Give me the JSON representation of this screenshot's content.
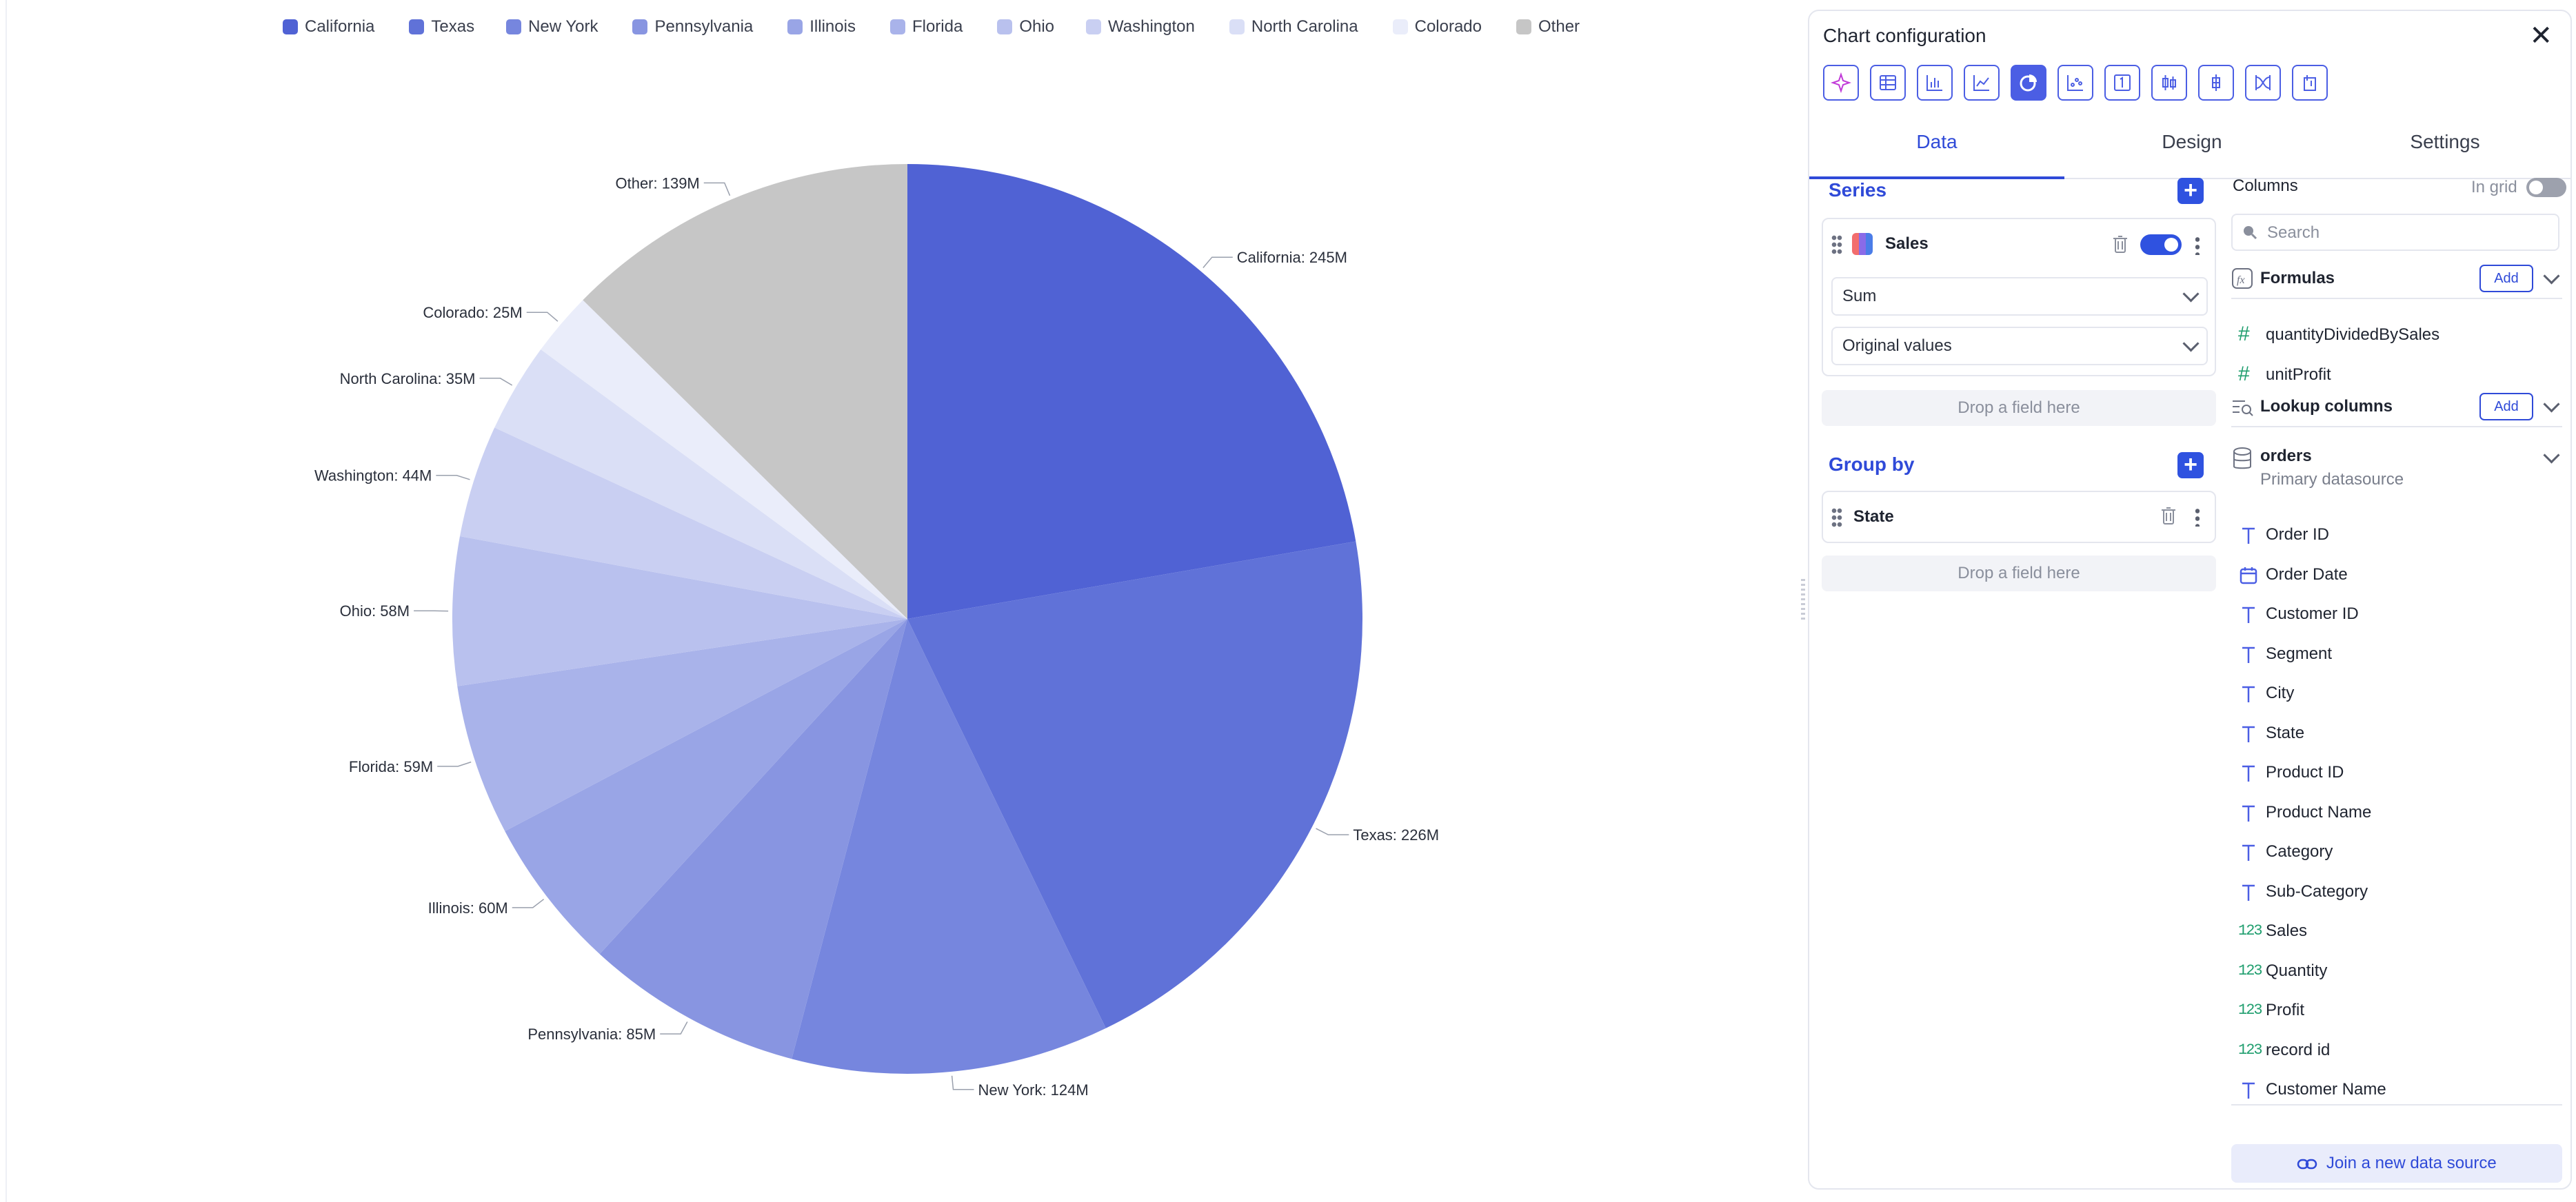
{
  "chart_data": {
    "type": "pie",
    "series_name": "Sales",
    "categories": [
      "California",
      "Texas",
      "New York",
      "Pennsylvania",
      "Illinois",
      "Florida",
      "Ohio",
      "Washington",
      "North Carolina",
      "Colorado",
      "Other"
    ],
    "values": [
      245,
      226,
      124,
      85,
      60,
      59,
      58,
      44,
      35,
      25,
      139
    ],
    "labels": [
      "California: 245M",
      "Texas: 226M",
      "New York: 124M",
      "Pennsylvania: 85M",
      "Illinois: 60M",
      "Florida: 59M",
      "Ohio: 58M",
      "Washington: 44M",
      "North Carolina: 35M",
      "Colorado: 25M",
      "Other: 139M"
    ],
    "colors": [
      "#5062d4",
      "#6072d8",
      "#7686de",
      "#8895e1",
      "#99a5e6",
      "#a9b3ea",
      "#b9c1ee",
      "#c9cff2",
      "#dadff6",
      "#eaedfa",
      "#c6c6c6"
    ],
    "legend_position": "top",
    "start_angle": "12 o'clock, clockwise"
  },
  "panel": {
    "title": "Chart configuration",
    "close_icon": "close-icon",
    "chart_types": [
      "smart-icon",
      "table-icon",
      "bar-chart-icon",
      "line-chart-icon",
      "pie-chart-icon",
      "scatter-icon",
      "number-kpi-icon",
      "box-plot-icon",
      "candlestick-icon",
      "sankey-icon",
      "funnel-icon"
    ],
    "active_chart_type": "pie-chart-icon",
    "accent": "#2f52e0",
    "tabs": [
      "Data",
      "Design",
      "Settings"
    ],
    "active_tab": "Data",
    "series": {
      "title": "Series",
      "item": {
        "name": "Sales",
        "enabled": true
      },
      "aggregation": "Sum",
      "transform": "Original values",
      "drop_placeholder": "Drop a field here"
    },
    "group_by": {
      "title": "Group by",
      "item": "State",
      "drop_placeholder": "Drop a field here"
    },
    "columns": {
      "title": "Columns",
      "in_grid_label": "In grid",
      "search_placeholder": "Search",
      "formulas": {
        "title": "Formulas",
        "add_label": "Add",
        "items": [
          "quantityDividedBySales",
          "unitProfit"
        ]
      },
      "lookup": {
        "title": "Lookup columns",
        "add_label": "Add"
      },
      "datasource": {
        "name": "orders",
        "subtitle": "Primary datasource"
      },
      "fields": [
        {
          "name": "Order ID",
          "type": "text"
        },
        {
          "name": "Order Date",
          "type": "date"
        },
        {
          "name": "Customer ID",
          "type": "text"
        },
        {
          "name": "Segment",
          "type": "text"
        },
        {
          "name": "City",
          "type": "text"
        },
        {
          "name": "State",
          "type": "text"
        },
        {
          "name": "Product ID",
          "type": "text"
        },
        {
          "name": "Product Name",
          "type": "text"
        },
        {
          "name": "Category",
          "type": "text"
        },
        {
          "name": "Sub-Category",
          "type": "text"
        },
        {
          "name": "Sales",
          "type": "number"
        },
        {
          "name": "Quantity",
          "type": "number"
        },
        {
          "name": "Profit",
          "type": "number"
        },
        {
          "name": "record id",
          "type": "number"
        },
        {
          "name": "Customer Name",
          "type": "text"
        }
      ],
      "join_label": "Join a new data source"
    }
  }
}
